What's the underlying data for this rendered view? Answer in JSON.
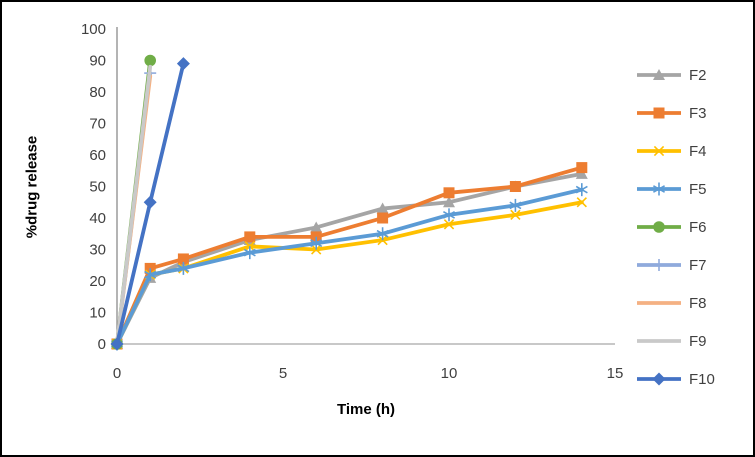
{
  "chart_data": {
    "type": "line",
    "title": "",
    "xlabel": "Time (h)",
    "ylabel": "%drug release",
    "xlim": [
      0,
      15
    ],
    "ylim": [
      0,
      100
    ],
    "x_ticks": [
      0,
      5,
      10,
      15
    ],
    "y_ticks": [
      0,
      10,
      20,
      30,
      40,
      50,
      60,
      70,
      80,
      90,
      100
    ],
    "grid": false,
    "legend_position": "right",
    "series": [
      {
        "name": "F2",
        "color": "#A5A5A5",
        "marker": "triangle",
        "x": [
          0,
          1,
          2,
          4,
          6,
          8,
          10,
          12,
          14
        ],
        "y": [
          0,
          21,
          26,
          33,
          37,
          43,
          45,
          50,
          54
        ]
      },
      {
        "name": "F3",
        "color": "#ED7D31",
        "marker": "square",
        "x": [
          0,
          1,
          2,
          4,
          6,
          8,
          10,
          12,
          14
        ],
        "y": [
          0,
          24,
          27,
          34,
          34,
          40,
          48,
          50,
          56
        ]
      },
      {
        "name": "F4",
        "color": "#FFC000",
        "marker": "x",
        "x": [
          0,
          1,
          2,
          4,
          6,
          8,
          10,
          12,
          14
        ],
        "y": [
          0,
          22,
          24,
          31,
          30,
          33,
          38,
          41,
          45
        ]
      },
      {
        "name": "F5",
        "color": "#5B9BD5",
        "marker": "asterisk",
        "x": [
          0,
          1,
          2,
          4,
          6,
          8,
          10,
          12,
          14
        ],
        "y": [
          0,
          22,
          24,
          29,
          32,
          35,
          41,
          44,
          49
        ]
      },
      {
        "name": "F6",
        "color": "#70AD47",
        "marker": "circle",
        "x": [
          0,
          1
        ],
        "y": [
          0,
          90
        ]
      },
      {
        "name": "F7",
        "color": "#8FAADC",
        "marker": "plus",
        "x": [
          0,
          1
        ],
        "y": [
          0,
          86
        ]
      },
      {
        "name": "F8",
        "color": "#F4B183",
        "marker": "none",
        "x": [
          0,
          1
        ],
        "y": [
          0,
          85
        ]
      },
      {
        "name": "F9",
        "color": "#C9C9C9",
        "marker": "none",
        "x": [
          0,
          1
        ],
        "y": [
          0,
          88
        ]
      },
      {
        "name": "F10",
        "color": "#4472C4",
        "marker": "diamond",
        "x": [
          0,
          1,
          2
        ],
        "y": [
          0,
          45,
          89
        ]
      }
    ]
  },
  "style": {
    "axis_line_color": "#8c8c8c",
    "tick_label_color": "#404040",
    "tick_font_size": 15
  }
}
